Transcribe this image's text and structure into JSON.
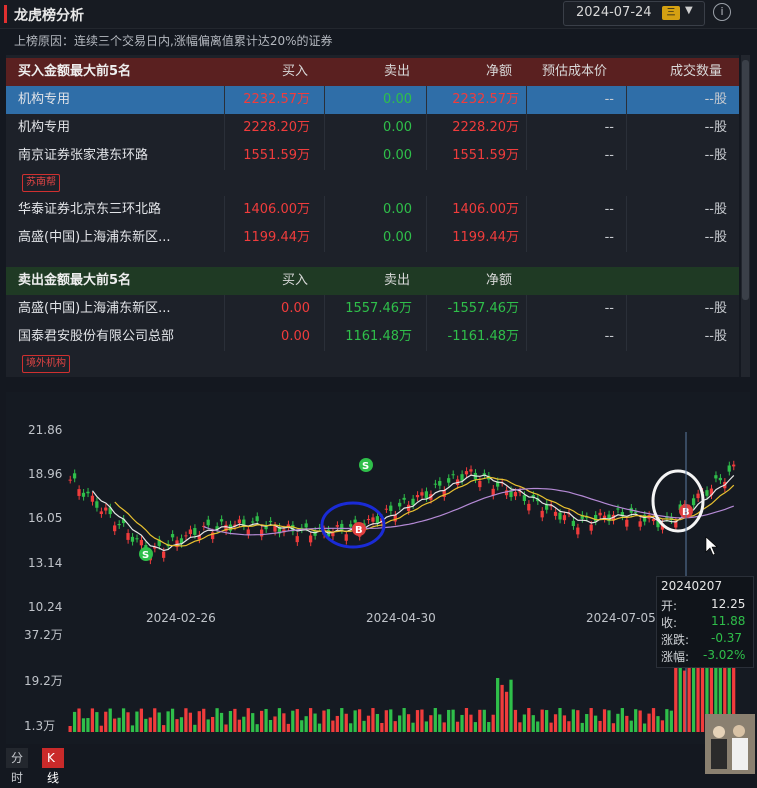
{
  "header": {
    "title": "龙虎榜分析",
    "date": "2024-07-24",
    "weekday_badge": "三",
    "reason": "上榜原因：连续三个交易日内,涨幅偏离值累计达20%的证券"
  },
  "buy_table": {
    "title": "买入金额最大前5名",
    "columns": [
      "买入",
      "卖出",
      "净额",
      "预估成本价",
      "成交数量"
    ],
    "rows": [
      {
        "name": "机构专用",
        "buy": "2232.57万",
        "sell": "0.00",
        "net": "2232.57万",
        "cost": "--",
        "qty": "--股",
        "selected": true
      },
      {
        "name": "机构专用",
        "buy": "2228.20万",
        "sell": "0.00",
        "net": "2228.20万",
        "cost": "--",
        "qty": "--股"
      },
      {
        "name": "南京证券张家港东环路",
        "buy": "1551.59万",
        "sell": "0.00",
        "net": "1551.59万",
        "cost": "--",
        "qty": "--股",
        "tag": "苏南帮"
      },
      {
        "name": "华泰证券北京东三环北路",
        "buy": "1406.00万",
        "sell": "0.00",
        "net": "1406.00万",
        "cost": "--",
        "qty": "--股"
      },
      {
        "name": "高盛(中国)上海浦东新区...",
        "buy": "1199.44万",
        "sell": "0.00",
        "net": "1199.44万",
        "cost": "--",
        "qty": "--股"
      }
    ]
  },
  "sell_table": {
    "title": "卖出金额最大前5名",
    "columns": [
      "买入",
      "卖出",
      "净额"
    ],
    "rows": [
      {
        "name": "高盛(中国)上海浦东新区...",
        "buy": "0.00",
        "sell": "1557.46万",
        "net": "-1557.46万",
        "cost": "--",
        "qty": "--股"
      },
      {
        "name": "国泰君安股份有限公司总部",
        "buy": "0.00",
        "sell": "1161.48万",
        "net": "-1161.48万",
        "cost": "--",
        "qty": "--股",
        "tag": "境外机构"
      }
    ]
  },
  "chart": {
    "price_ticks": [
      "21.86",
      "18.96",
      "16.05",
      "13.14",
      "10.24"
    ],
    "volume_ticks": [
      "37.2万",
      "19.2万",
      "1.3万"
    ],
    "date_ticks": [
      "2024-02-26",
      "2024-04-30",
      "2024-07-05"
    ],
    "markers": [
      "S",
      "S",
      "B",
      "B"
    ]
  },
  "tooltip": {
    "date": "20240207",
    "open_label": "开:",
    "open": "12.25",
    "close_label": "收:",
    "close": "11.88",
    "change_label": "涨跌:",
    "change": "-0.37",
    "pct_label": "涨幅:",
    "pct": "-3.02%"
  },
  "tabs": {
    "intraday": "分时",
    "kline": "K线"
  },
  "colors": {
    "up": "#f03c3c",
    "down": "#2fbf4a",
    "selected_row": "#2f6ea8",
    "buy_header": "#5a2020",
    "sell_header": "#1f3a24"
  }
}
